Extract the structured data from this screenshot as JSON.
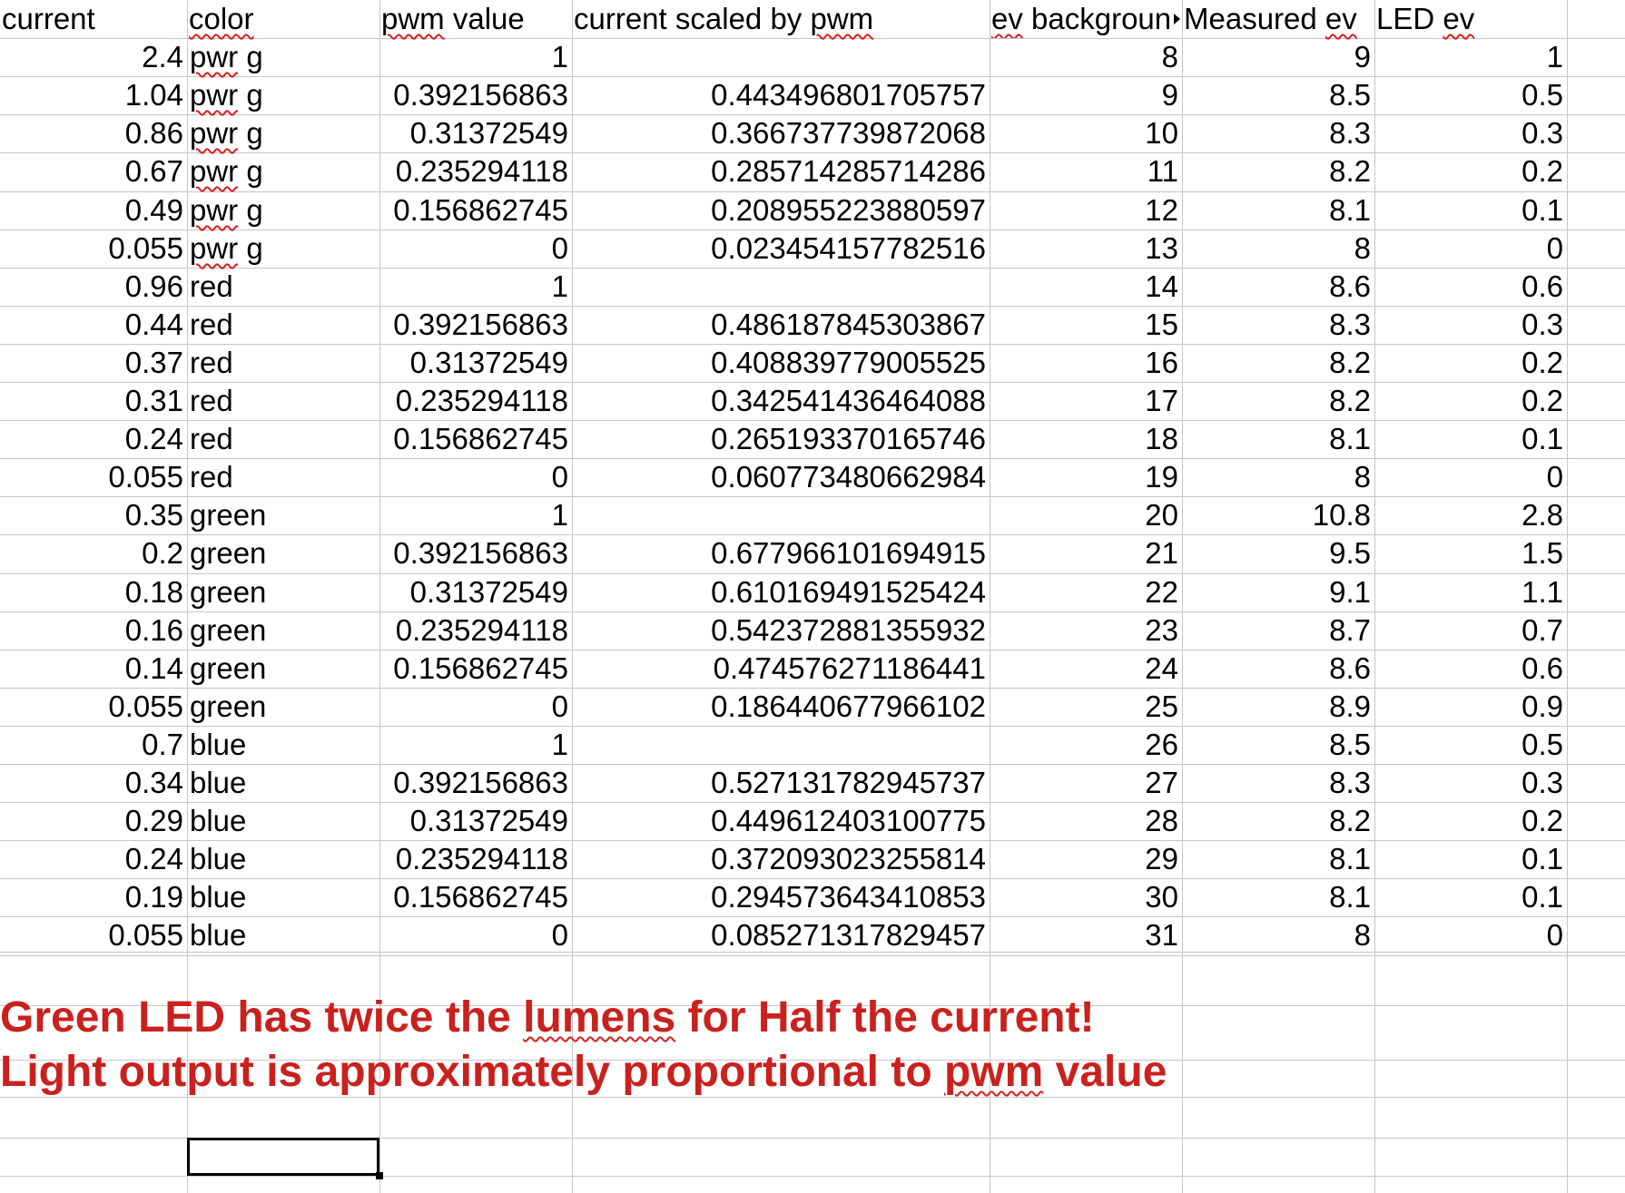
{
  "columns": [
    {
      "key": "current",
      "header": "current"
    },
    {
      "key": "color",
      "header": "color"
    },
    {
      "key": "pwm",
      "header": "pwm value"
    },
    {
      "key": "scaled",
      "header": "current scaled by pwm"
    },
    {
      "key": "bg",
      "header": "ev backgroun"
    },
    {
      "key": "measured",
      "header": "Measured ev"
    },
    {
      "key": "led",
      "header": "LED ev"
    }
  ],
  "rows": [
    {
      "current": "2.4",
      "color": "pwr g",
      "pwm": "1",
      "scaled": "",
      "bg": "8",
      "measured": "9",
      "led": "1"
    },
    {
      "current": "1.04",
      "color": "pwr g",
      "pwm": "0.392156863",
      "scaled": "0.443496801705757",
      "bg": "9",
      "measured": "8.5",
      "led": "0.5"
    },
    {
      "current": "0.86",
      "color": "pwr g",
      "pwm": "0.31372549",
      "scaled": "0.366737739872068",
      "bg": "10",
      "measured": "8.3",
      "led": "0.3"
    },
    {
      "current": "0.67",
      "color": "pwr g",
      "pwm": "0.235294118",
      "scaled": "0.285714285714286",
      "bg": "11",
      "measured": "8.2",
      "led": "0.2"
    },
    {
      "current": "0.49",
      "color": "pwr g",
      "pwm": "0.156862745",
      "scaled": "0.208955223880597",
      "bg": "12",
      "measured": "8.1",
      "led": "0.1"
    },
    {
      "current": "0.055",
      "color": "pwr g",
      "pwm": "0",
      "scaled": "0.023454157782516",
      "bg": "13",
      "measured": "8",
      "led": "0"
    },
    {
      "current": "0.96",
      "color": "red",
      "pwm": "1",
      "scaled": "",
      "bg": "14",
      "measured": "8.6",
      "led": "0.6"
    },
    {
      "current": "0.44",
      "color": "red",
      "pwm": "0.392156863",
      "scaled": "0.486187845303867",
      "bg": "15",
      "measured": "8.3",
      "led": "0.3"
    },
    {
      "current": "0.37",
      "color": "red",
      "pwm": "0.31372549",
      "scaled": "0.408839779005525",
      "bg": "16",
      "measured": "8.2",
      "led": "0.2"
    },
    {
      "current": "0.31",
      "color": "red",
      "pwm": "0.235294118",
      "scaled": "0.342541436464088",
      "bg": "17",
      "measured": "8.2",
      "led": "0.2"
    },
    {
      "current": "0.24",
      "color": "red",
      "pwm": "0.156862745",
      "scaled": "0.265193370165746",
      "bg": "18",
      "measured": "8.1",
      "led": "0.1"
    },
    {
      "current": "0.055",
      "color": "red",
      "pwm": "0",
      "scaled": "0.060773480662984",
      "bg": "19",
      "measured": "8",
      "led": "0"
    },
    {
      "current": "0.35",
      "color": "green",
      "pwm": "1",
      "scaled": "",
      "bg": "20",
      "measured": "10.8",
      "led": "2.8"
    },
    {
      "current": "0.2",
      "color": "green",
      "pwm": "0.392156863",
      "scaled": "0.677966101694915",
      "bg": "21",
      "measured": "9.5",
      "led": "1.5"
    },
    {
      "current": "0.18",
      "color": "green",
      "pwm": "0.31372549",
      "scaled": "0.610169491525424",
      "bg": "22",
      "measured": "9.1",
      "led": "1.1"
    },
    {
      "current": "0.16",
      "color": "green",
      "pwm": "0.235294118",
      "scaled": "0.542372881355932",
      "bg": "23",
      "measured": "8.7",
      "led": "0.7"
    },
    {
      "current": "0.14",
      "color": "green",
      "pwm": "0.156862745",
      "scaled": "0.474576271186441",
      "bg": "24",
      "measured": "8.6",
      "led": "0.6"
    },
    {
      "current": "0.055",
      "color": "green",
      "pwm": "0",
      "scaled": "0.186440677966102",
      "bg": "25",
      "measured": "8.9",
      "led": "0.9"
    },
    {
      "current": "0.7",
      "color": "blue",
      "pwm": "1",
      "scaled": "",
      "bg": "26",
      "measured": "8.5",
      "led": "0.5"
    },
    {
      "current": "0.34",
      "color": "blue",
      "pwm": "0.392156863",
      "scaled": "0.527131782945737",
      "bg": "27",
      "measured": "8.3",
      "led": "0.3"
    },
    {
      "current": "0.29",
      "color": "blue",
      "pwm": "0.31372549",
      "scaled": "0.449612403100775",
      "bg": "28",
      "measured": "8.2",
      "led": "0.2"
    },
    {
      "current": "0.24",
      "color": "blue",
      "pwm": "0.235294118",
      "scaled": "0.372093023255814",
      "bg": "29",
      "measured": "8.1",
      "led": "0.1"
    },
    {
      "current": "0.19",
      "color": "blue",
      "pwm": "0.156862745",
      "scaled": "0.294573643410853",
      "bg": "30",
      "measured": "8.1",
      "led": "0.1"
    },
    {
      "current": "0.055",
      "color": "blue",
      "pwm": "0",
      "scaled": "0.085271317829457",
      "bg": "31",
      "measured": "8",
      "led": "0"
    }
  ],
  "notes": {
    "line1_before": "Green LED has twice the ",
    "line1_squiggle": "lumens",
    "line1_after": " for Half the current!",
    "line2_before": "Light output is approximately proportional to ",
    "line2_squiggle": "pwm",
    "line2_after": " value"
  },
  "colors": {
    "note_text": "#c9211e",
    "grid": "#c6c6c6",
    "spellcheck": "#d62020"
  }
}
